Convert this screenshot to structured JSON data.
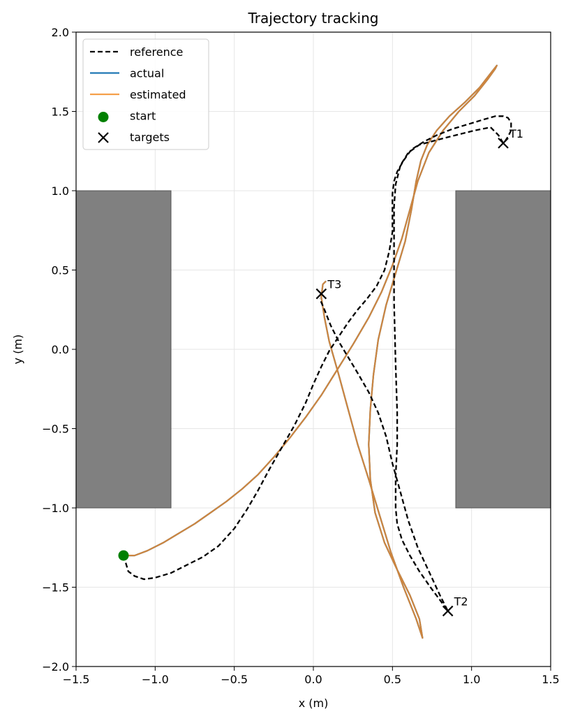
{
  "chart_data": {
    "type": "line",
    "title": "Trajectory tracking",
    "xlabel": "x (m)",
    "ylabel": "y (m)",
    "xlim": [
      -1.5,
      1.5
    ],
    "ylim": [
      -2.0,
      2.0
    ],
    "xticks": [
      -1.5,
      -1.0,
      -0.5,
      0.0,
      0.5,
      1.0,
      1.5
    ],
    "xtick_labels": [
      "−1.5",
      "−1.0",
      "−0.5",
      "0.0",
      "0.5",
      "1.0",
      "1.5"
    ],
    "yticks": [
      -2.0,
      -1.5,
      -1.0,
      -0.5,
      0.0,
      0.5,
      1.0,
      1.5,
      2.0
    ],
    "ytick_labels": [
      "−2.0",
      "−1.5",
      "−1.0",
      "−0.5",
      "0.0",
      "0.5",
      "1.0",
      "1.5",
      "2.0"
    ],
    "grid": true,
    "legend_position": "top-left",
    "obstacles": [
      {
        "x": [
          -1.5,
          -0.9
        ],
        "y": [
          -1.0,
          1.0
        ],
        "color": "#808080"
      },
      {
        "x": [
          0.9,
          1.5
        ],
        "y": [
          -1.0,
          1.0
        ],
        "color": "#808080"
      }
    ],
    "series": [
      {
        "name": "reference",
        "style": "dashed",
        "color": "#000000",
        "x": [
          -1.2,
          -1.17,
          -1.13,
          -1.07,
          -1.0,
          -0.9,
          -0.8,
          -0.7,
          -0.6,
          -0.5,
          -0.42,
          -0.35,
          -0.28,
          -0.2,
          -0.12,
          -0.05,
          0.0,
          0.05,
          0.1,
          0.16,
          0.22,
          0.28,
          0.34,
          0.4,
          0.45,
          0.48,
          0.5,
          0.5,
          0.5,
          0.51,
          0.53,
          0.57,
          0.62,
          0.7,
          0.78,
          0.88,
          0.98,
          1.08,
          1.15,
          1.2,
          1.23,
          1.25,
          1.25,
          1.23,
          1.21,
          1.2,
          1.17,
          1.12,
          1.02,
          0.9,
          0.78,
          0.67,
          0.6,
          0.55,
          0.52,
          0.51,
          0.51,
          0.51,
          0.52,
          0.53,
          0.53,
          0.52,
          0.52,
          0.53,
          0.56,
          0.61,
          0.67,
          0.74,
          0.8,
          0.85,
          0.8,
          0.73,
          0.66,
          0.6,
          0.55,
          0.5,
          0.46,
          0.41,
          0.35,
          0.28,
          0.22,
          0.16,
          0.11,
          0.07,
          0.04
        ],
        "y": [
          -1.3,
          -1.4,
          -1.43,
          -1.45,
          -1.44,
          -1.41,
          -1.36,
          -1.31,
          -1.24,
          -1.13,
          -1.01,
          -0.89,
          -0.76,
          -0.62,
          -0.48,
          -0.34,
          -0.22,
          -0.11,
          -0.01,
          0.08,
          0.17,
          0.25,
          0.32,
          0.4,
          0.5,
          0.62,
          0.74,
          0.86,
          0.98,
          1.06,
          1.12,
          1.19,
          1.26,
          1.31,
          1.35,
          1.39,
          1.42,
          1.45,
          1.47,
          1.47,
          1.46,
          1.43,
          1.38,
          1.34,
          1.31,
          1.3,
          1.35,
          1.4,
          1.38,
          1.35,
          1.32,
          1.29,
          1.24,
          1.16,
          1.04,
          0.9,
          0.7,
          0.3,
          -0.1,
          -0.4,
          -0.6,
          -0.8,
          -1.0,
          -1.1,
          -1.2,
          -1.3,
          -1.4,
          -1.5,
          -1.58,
          -1.65,
          -1.55,
          -1.4,
          -1.25,
          -1.08,
          -0.9,
          -0.72,
          -0.55,
          -0.4,
          -0.27,
          -0.15,
          -0.05,
          0.05,
          0.15,
          0.25,
          0.32
        ]
      },
      {
        "name": "actual",
        "style": "solid",
        "color": "#1f77b4",
        "x": [
          -1.2,
          -1.13,
          -1.05,
          -0.95,
          -0.85,
          -0.75,
          -0.65,
          -0.55,
          -0.45,
          -0.35,
          -0.25,
          -0.15,
          -0.05,
          0.05,
          0.15,
          0.25,
          0.35,
          0.43,
          0.5,
          0.56,
          0.61,
          0.66,
          0.73,
          0.82,
          0.92,
          1.02,
          1.1,
          1.15,
          1.16,
          1.12,
          1.05,
          0.96,
          0.86,
          0.78,
          0.72,
          0.68,
          0.65,
          0.62,
          0.58,
          0.52,
          0.46,
          0.41,
          0.38,
          0.36,
          0.35,
          0.36,
          0.39,
          0.45,
          0.53,
          0.61,
          0.67,
          0.69,
          0.65,
          0.57,
          0.49,
          0.42,
          0.35,
          0.28,
          0.22,
          0.16,
          0.1,
          0.07,
          0.05,
          0.06,
          0.08
        ],
        "y": [
          -1.3,
          -1.3,
          -1.27,
          -1.22,
          -1.16,
          -1.1,
          -1.03,
          -0.96,
          -0.88,
          -0.79,
          -0.68,
          -0.56,
          -0.43,
          -0.29,
          -0.13,
          0.03,
          0.2,
          0.36,
          0.53,
          0.7,
          0.88,
          1.06,
          1.24,
          1.38,
          1.5,
          1.6,
          1.7,
          1.77,
          1.79,
          1.74,
          1.65,
          1.56,
          1.47,
          1.38,
          1.29,
          1.19,
          1.06,
          0.88,
          0.68,
          0.48,
          0.28,
          0.06,
          -0.16,
          -0.38,
          -0.6,
          -0.82,
          -1.03,
          -1.22,
          -1.39,
          -1.55,
          -1.7,
          -1.82,
          -1.7,
          -1.5,
          -1.28,
          -1.05,
          -0.82,
          -0.6,
          -0.38,
          -0.16,
          0.05,
          0.2,
          0.33,
          0.41,
          0.43
        ]
      },
      {
        "name": "estimated",
        "style": "solid",
        "color": "#ff7f0e",
        "x": [
          -1.2,
          -1.13,
          -1.05,
          -0.95,
          -0.85,
          -0.75,
          -0.65,
          -0.55,
          -0.45,
          -0.35,
          -0.25,
          -0.15,
          -0.05,
          0.05,
          0.15,
          0.25,
          0.35,
          0.43,
          0.5,
          0.56,
          0.61,
          0.66,
          0.73,
          0.82,
          0.92,
          1.02,
          1.1,
          1.15,
          1.16,
          1.12,
          1.05,
          0.96,
          0.86,
          0.78,
          0.72,
          0.68,
          0.65,
          0.62,
          0.58,
          0.52,
          0.46,
          0.41,
          0.38,
          0.36,
          0.35,
          0.36,
          0.39,
          0.45,
          0.53,
          0.61,
          0.67,
          0.69,
          0.65,
          0.57,
          0.49,
          0.42,
          0.35,
          0.28,
          0.22,
          0.16,
          0.1,
          0.07,
          0.05,
          0.06,
          0.08
        ],
        "y": [
          -1.3,
          -1.3,
          -1.27,
          -1.22,
          -1.16,
          -1.1,
          -1.03,
          -0.96,
          -0.88,
          -0.79,
          -0.68,
          -0.56,
          -0.43,
          -0.29,
          -0.13,
          0.03,
          0.2,
          0.36,
          0.53,
          0.7,
          0.88,
          1.06,
          1.24,
          1.38,
          1.5,
          1.6,
          1.7,
          1.77,
          1.79,
          1.74,
          1.65,
          1.56,
          1.47,
          1.38,
          1.29,
          1.19,
          1.06,
          0.88,
          0.68,
          0.48,
          0.28,
          0.06,
          -0.16,
          -0.38,
          -0.6,
          -0.82,
          -1.03,
          -1.22,
          -1.39,
          -1.55,
          -1.7,
          -1.82,
          -1.7,
          -1.5,
          -1.28,
          -1.05,
          -0.82,
          -0.6,
          -0.38,
          -0.16,
          0.05,
          0.2,
          0.33,
          0.41,
          0.43
        ]
      }
    ],
    "start": {
      "name": "start",
      "x": -1.2,
      "y": -1.3,
      "color": "#008000"
    },
    "targets": {
      "name": "targets",
      "color": "#000000",
      "points": [
        {
          "label": "T1",
          "x": 1.2,
          "y": 1.3
        },
        {
          "label": "T2",
          "x": 0.85,
          "y": -1.65
        },
        {
          "label": "T3",
          "x": 0.05,
          "y": 0.35
        }
      ]
    },
    "estimated_overlay_color": "#cd853f"
  }
}
